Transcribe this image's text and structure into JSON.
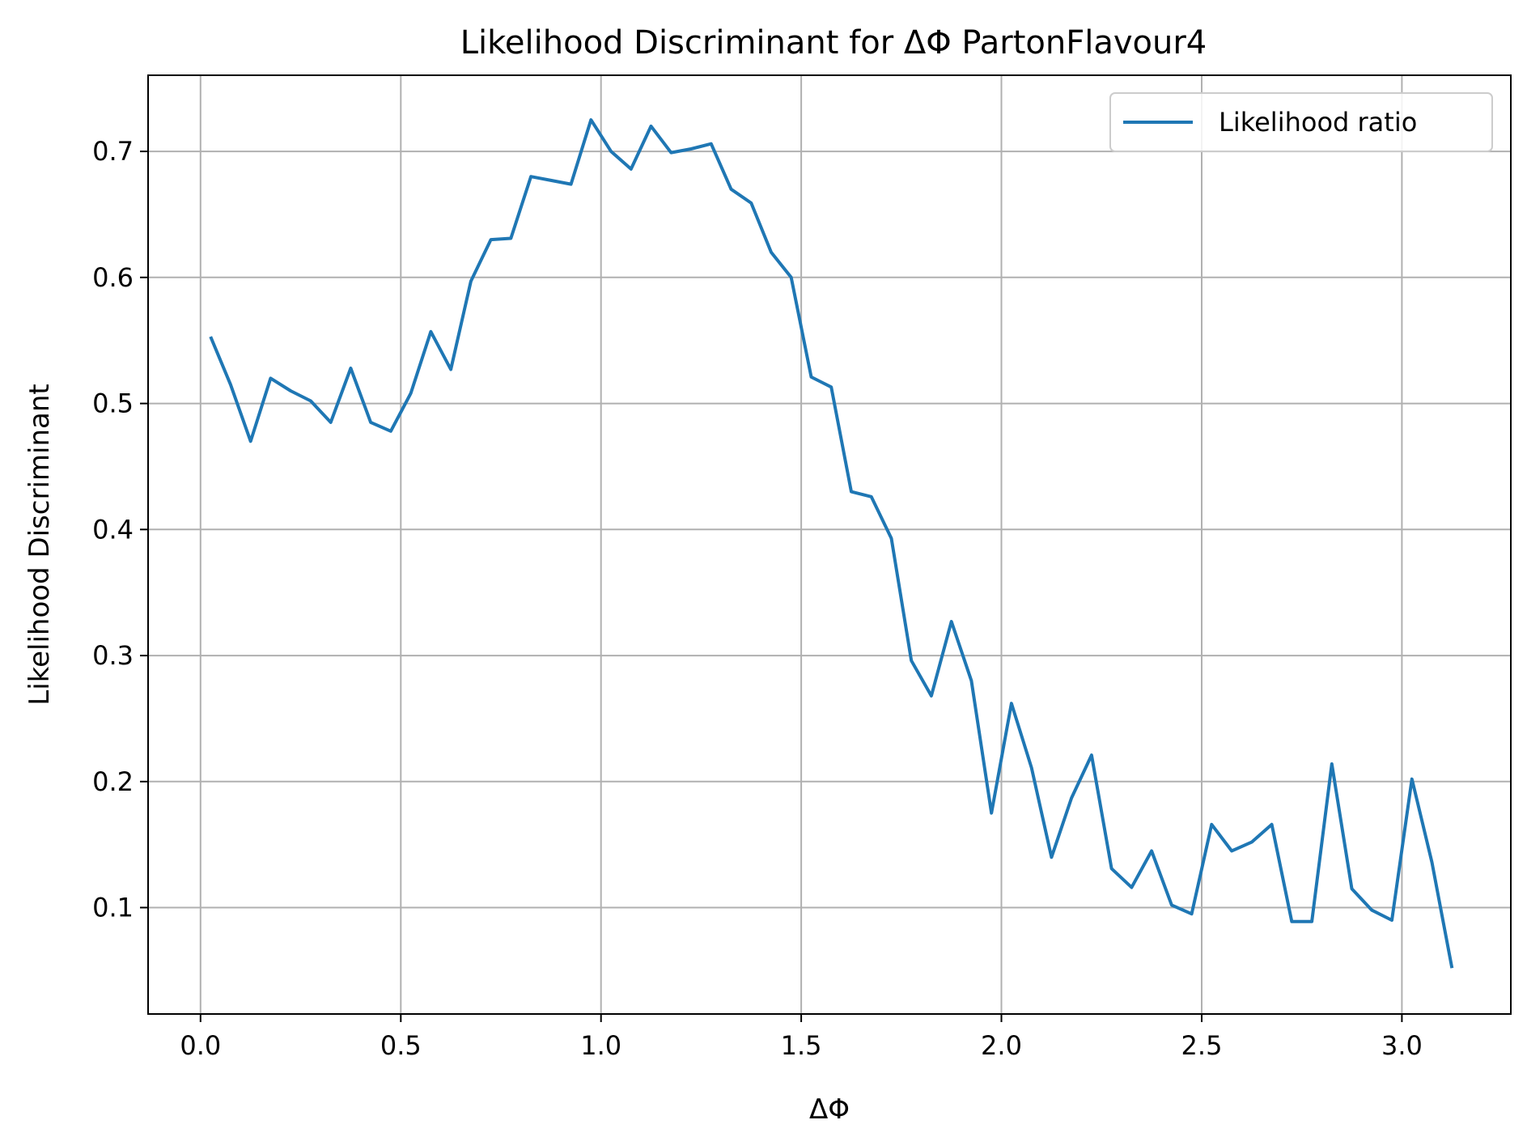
{
  "chart_data": {
    "type": "line",
    "title": "Likelihood Discriminant for ΔΦ PartonFlavour4",
    "xlabel": "ΔΦ",
    "ylabel": "Likelihood Discriminant",
    "xlim": [
      -0.131,
      3.272
    ],
    "ylim": [
      0.0156,
      0.7604
    ],
    "xticks": [
      0.0,
      0.5,
      1.0,
      1.5,
      2.0,
      2.5,
      3.0
    ],
    "xtick_labels": [
      "0.0",
      "0.5",
      "1.0",
      "1.5",
      "2.0",
      "2.5",
      "3.0"
    ],
    "yticks": [
      0.1,
      0.2,
      0.3,
      0.4,
      0.5,
      0.6,
      0.7
    ],
    "ytick_labels": [
      "0.1",
      "0.2",
      "0.3",
      "0.4",
      "0.5",
      "0.6",
      "0.7"
    ],
    "grid": true,
    "legend_position": "top-right",
    "series": [
      {
        "name": "Likelihood ratio",
        "color": "#1f77b4",
        "x": [
          0.025,
          0.075,
          0.125,
          0.175,
          0.225,
          0.275,
          0.325,
          0.375,
          0.425,
          0.475,
          0.525,
          0.575,
          0.625,
          0.675,
          0.725,
          0.775,
          0.825,
          0.875,
          0.925,
          0.975,
          1.025,
          1.075,
          1.125,
          1.175,
          1.225,
          1.275,
          1.325,
          1.375,
          1.425,
          1.475,
          1.525,
          1.575,
          1.625,
          1.675,
          1.725,
          1.775,
          1.825,
          1.875,
          1.925,
          1.975,
          2.025,
          2.075,
          2.125,
          2.175,
          2.225,
          2.275,
          2.325,
          2.375,
          2.425,
          2.475,
          2.525,
          2.575,
          2.625,
          2.675,
          2.725,
          2.775,
          2.825,
          2.875,
          2.925,
          2.975,
          3.025,
          3.075,
          3.125
        ],
        "y": [
          0.553,
          0.515,
          0.47,
          0.52,
          0.51,
          0.502,
          0.485,
          0.528,
          0.485,
          0.478,
          0.508,
          0.557,
          0.527,
          0.597,
          0.63,
          0.631,
          0.68,
          0.677,
          0.674,
          0.725,
          0.7,
          0.686,
          0.72,
          0.699,
          0.702,
          0.706,
          0.67,
          0.659,
          0.62,
          0.6,
          0.521,
          0.513,
          0.43,
          0.426,
          0.393,
          0.296,
          0.268,
          0.327,
          0.28,
          0.175,
          0.262,
          0.211,
          0.14,
          0.187,
          0.221,
          0.131,
          0.116,
          0.145,
          0.102,
          0.095,
          0.166,
          0.145,
          0.152,
          0.166,
          0.089,
          0.089,
          0.214,
          0.115,
          0.098,
          0.09,
          0.202,
          0.136,
          0.052
        ]
      }
    ]
  }
}
